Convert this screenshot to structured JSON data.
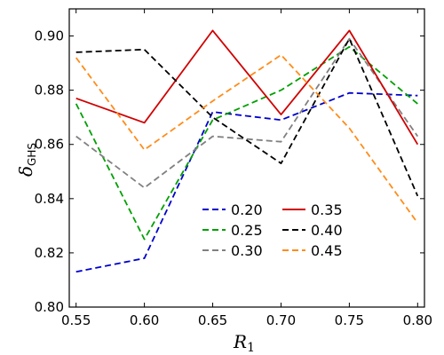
{
  "chart_data": {
    "type": "line",
    "x": [
      0.55,
      0.6,
      0.65,
      0.7,
      0.75,
      0.8
    ],
    "x_tick_labels": [
      "0.55",
      "0.60",
      "0.65",
      "0.70",
      "0.75",
      "0.80"
    ],
    "y_tick_labels": [
      "0.80",
      "0.82",
      "0.84",
      "0.86",
      "0.88",
      "0.90"
    ],
    "y_ticks": [
      0.8,
      0.82,
      0.84,
      0.86,
      0.88,
      0.9
    ],
    "xlim": [
      0.545,
      0.805
    ],
    "ylim": [
      0.8,
      0.91
    ],
    "xlabel_main": "R",
    "xlabel_sub": "1",
    "ylabel_main": "δ",
    "ylabel_sub": "GHS",
    "grid": false,
    "legend_position": "lower-center",
    "series": [
      {
        "name": "0.20",
        "color": "#0000cc",
        "dash": "dashed",
        "values": [
          0.813,
          0.818,
          0.872,
          0.869,
          0.879,
          0.878
        ]
      },
      {
        "name": "0.25",
        "color": "#00a000",
        "dash": "dashed",
        "values": [
          0.875,
          0.825,
          0.869,
          0.88,
          0.896,
          0.875
        ]
      },
      {
        "name": "0.30",
        "color": "#808080",
        "dash": "dashed",
        "values": [
          0.863,
          0.844,
          0.863,
          0.861,
          0.899,
          0.863
        ]
      },
      {
        "name": "0.35",
        "color": "#d00000",
        "dash": "solid",
        "values": [
          0.877,
          0.868,
          0.902,
          0.871,
          0.902,
          0.86
        ]
      },
      {
        "name": "0.40",
        "color": "#000000",
        "dash": "dashed",
        "values": [
          0.894,
          0.895,
          0.87,
          0.853,
          0.899,
          0.841
        ]
      },
      {
        "name": "0.45",
        "color": "#ff8c1a",
        "dash": "dashed",
        "values": [
          0.892,
          0.858,
          0.876,
          0.893,
          0.866,
          0.831
        ]
      }
    ]
  }
}
